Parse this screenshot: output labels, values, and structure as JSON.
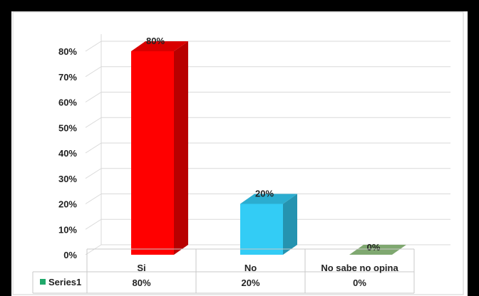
{
  "chart_data": {
    "type": "bar",
    "categories": [
      "Si",
      "No",
      "No sabe no opina"
    ],
    "series": [
      {
        "name": "Series1",
        "values": [
          80,
          20,
          0
        ],
        "value_labels": [
          "80%",
          "20%",
          "0%"
        ],
        "colors": [
          "#ff0000",
          "#33ccf5",
          "#7fa870"
        ]
      }
    ],
    "y_ticks": [
      "0%",
      "10%",
      "20%",
      "30%",
      "40%",
      "50%",
      "60%",
      "70%",
      "80%"
    ],
    "ylim": [
      0,
      80
    ],
    "grid": true,
    "data_table": true,
    "style": "3d-column"
  }
}
